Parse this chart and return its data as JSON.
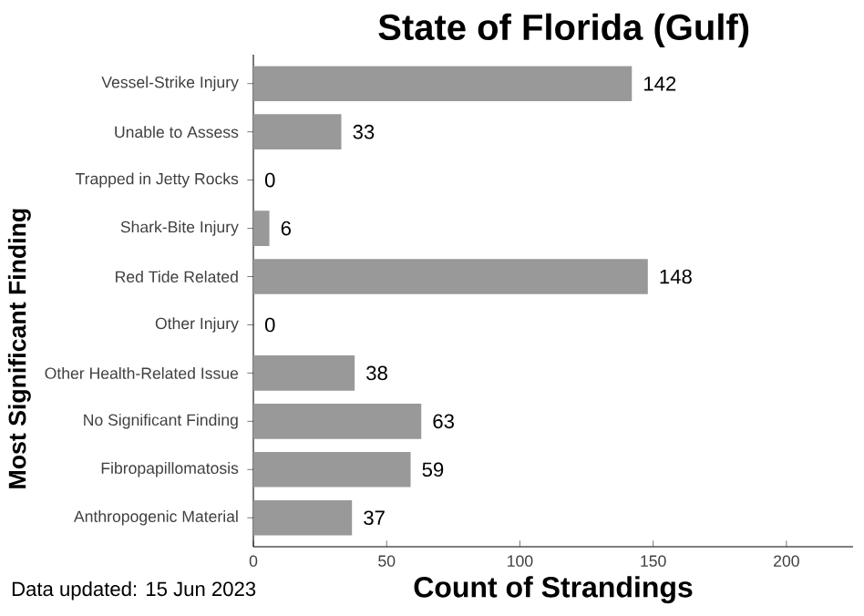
{
  "chart_data": {
    "type": "bar",
    "orientation": "horizontal",
    "title": "State of Florida (Gulf)",
    "xlabel": "Count of Strandings",
    "ylabel": "Most Significant Finding",
    "categories": [
      "Vessel-Strike Injury",
      "Unable to Assess",
      "Trapped in Jetty Rocks",
      "Shark-Bite Injury",
      "Red Tide Related",
      "Other Injury",
      "Other Health-Related Issue",
      "No Significant Finding",
      "Fibropapillomatosis",
      "Anthropogenic Material"
    ],
    "values": [
      142,
      33,
      0,
      6,
      148,
      0,
      38,
      63,
      59,
      37
    ],
    "color": "#999999",
    "data_labels": true,
    "grid": false,
    "xlim": [
      0,
      225
    ],
    "xticks": [
      0,
      50,
      100,
      150,
      200
    ],
    "annotations": [
      "Data updated: 15 Jun 2023"
    ]
  }
}
